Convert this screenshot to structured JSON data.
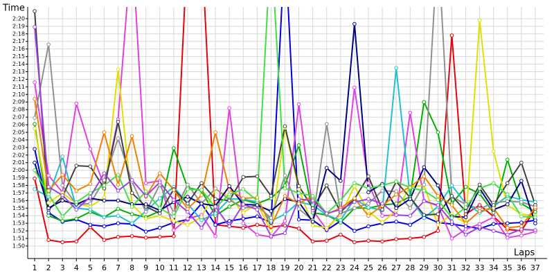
{
  "chart_data": {
    "type": "line",
    "y_label": "Time",
    "x_label": "Laps",
    "x": [
      1,
      2,
      3,
      4,
      5,
      6,
      7,
      8,
      9,
      10,
      11,
      12,
      13,
      14,
      15,
      16,
      17,
      18,
      19,
      20,
      21,
      22,
      23,
      24,
      25,
      26,
      27,
      28,
      29,
      30,
      31,
      32,
      33,
      34,
      35,
      36,
      37
    ],
    "xlim": [
      0.5,
      37.6
    ],
    "xticks": [
      1,
      2,
      3,
      4,
      5,
      6,
      7,
      8,
      9,
      10,
      11,
      12,
      13,
      14,
      15,
      16,
      17,
      18,
      19,
      20,
      21,
      22,
      23,
      24,
      25,
      26,
      27,
      28,
      29,
      30,
      31,
      32,
      33,
      34,
      35,
      36,
      37
    ],
    "ylim": [
      108.35,
      141.55
    ],
    "yticks": [
      {
        "value": 110,
        "label": "1:50"
      },
      {
        "value": 111,
        "label": "1:51"
      },
      {
        "value": 112,
        "label": "1:52"
      },
      {
        "value": 113,
        "label": "1:53"
      },
      {
        "value": 114,
        "label": "1:54"
      },
      {
        "value": 115,
        "label": "1:55"
      },
      {
        "value": 116,
        "label": "1:56"
      },
      {
        "value": 117,
        "label": "1:57"
      },
      {
        "value": 118,
        "label": "1:58"
      },
      {
        "value": 119,
        "label": "1:59"
      },
      {
        "value": 120,
        "label": "2:00"
      },
      {
        "value": 121,
        "label": "2:01"
      },
      {
        "value": 122,
        "label": "2:02"
      },
      {
        "value": 123,
        "label": "2:03"
      },
      {
        "value": 124,
        "label": "2:04"
      },
      {
        "value": 125,
        "label": "2:05"
      },
      {
        "value": 126,
        "label": "2:06"
      },
      {
        "value": 127,
        "label": "2:07"
      },
      {
        "value": 128,
        "label": "2:08"
      },
      {
        "value": 129,
        "label": "2:09"
      },
      {
        "value": 130,
        "label": "2:10"
      },
      {
        "value": 131,
        "label": "2:11"
      },
      {
        "value": 132,
        "label": "2:12"
      },
      {
        "value": 133,
        "label": "2:13"
      },
      {
        "value": 134,
        "label": "2:14"
      },
      {
        "value": 135,
        "label": "2:15"
      },
      {
        "value": 136,
        "label": "2:16"
      },
      {
        "value": 137,
        "label": "2:17"
      },
      {
        "value": 138,
        "label": "2:18"
      },
      {
        "value": 139,
        "label": "2:19"
      },
      {
        "value": 140,
        "label": "2:20"
      }
    ],
    "grid": true,
    "series": [
      {
        "color": "#e8000b",
        "values": [
          118.9,
          110.8,
          110.5,
          110.6,
          112.5,
          110.8,
          111.2,
          111.3,
          111.1,
          111.2,
          111.3,
          150,
          150,
          112.8,
          112.6,
          112.4,
          112.8,
          112.5,
          112.7,
          112.3,
          110.6,
          110.7,
          111.5,
          110.5,
          110.7,
          110.6,
          110.9,
          111.0,
          111.2,
          112.0,
          137.8,
          114.2,
          115.4,
          113.9,
          112.2,
          112.0,
          114.9
        ]
      },
      {
        "color": "#0000e0",
        "values": [
          122.8,
          114.4,
          113.2,
          113.5,
          112.8,
          112.6,
          113.0,
          112.9,
          111.9,
          112.4,
          113.1,
          113.5,
          115.6,
          112.8,
          113.3,
          113.6,
          113.9,
          113.1,
          150,
          113.5,
          113.4,
          112.1,
          113.3,
          112.0,
          112.6,
          113.0,
          113.2,
          112.8,
          113.9,
          113.1,
          112.9,
          112.6,
          112.3,
          112.9,
          113.0,
          113.1,
          113.4
        ]
      },
      {
        "color": "#00b000",
        "values": [
          126.1,
          114.0,
          113.3,
          113.6,
          114.5,
          113.8,
          114.9,
          114.2,
          113.8,
          114.6,
          122.9,
          117.7,
          117.3,
          114.0,
          115.2,
          116.1,
          115.6,
          116.3,
          118.0,
          123.3,
          114.4,
          114.1,
          113.1,
          115.0,
          115.0,
          115.4,
          115.6,
          116.5,
          129.0,
          125.0,
          115.6,
          117.8,
          116.9,
          114.4,
          121.4,
          115.6,
          114.5
        ]
      },
      {
        "color": "#e040e0",
        "values": [
          131.6,
          119.3,
          117.1,
          128.8,
          122.8,
          118.0,
          126.7,
          150,
          118.3,
          118.6,
          112.1,
          113.6,
          114.1,
          111.3,
          128.2,
          113.0,
          111.5,
          111.2,
          113.3,
          128.7,
          114.7,
          112.2,
          114.4,
          130.9,
          118.3,
          114.0,
          114.1,
          127.6,
          116.0,
          115.3,
          111.0,
          112.2,
          112.9,
          113.8,
          111.1,
          111.4,
          111.9
        ]
      },
      {
        "color": "#e0e000",
        "values": [
          125.5,
          115.7,
          117.0,
          115.6,
          115.2,
          116.4,
          133.3,
          115.5,
          113.6,
          114.0,
          113.3,
          112.8,
          113.8,
          117.5,
          116.5,
          114.4,
          115.6,
          112.0,
          125.6,
          117.5,
          112.7,
          112.4,
          114.1,
          117.9,
          114.6,
          113.1,
          114.7,
          117.8,
          118.0,
          112.8,
          114.2,
          113.0,
          139.8,
          122.5,
          115.4,
          114.2,
          114.0
        ]
      },
      {
        "color": "#20c0d0",
        "values": [
          117.5,
          116.5,
          121.8,
          115.0,
          114.8,
          113.8,
          114.0,
          113.0,
          114.6,
          116.3,
          117.8,
          115.6,
          113.4,
          114.3,
          116.2,
          116.2,
          115.8,
          113.3,
          114.2,
          115.8,
          115.4,
          114.1,
          113.4,
          116.2,
          115.1,
          114.7,
          133.5,
          116.4,
          113.7,
          115.2,
          118.0,
          115.6,
          114.4,
          115.2,
          116.6,
          116.1,
          115.8
        ]
      },
      {
        "color": "#909090",
        "values": [
          126.9,
          136.6,
          118.0,
          115.5,
          115.6,
          118.7,
          124.2,
          118.5,
          114.5,
          118.1,
          114.4,
          118.1,
          115.6,
          117.6,
          116.1,
          115.0,
          115.3,
          113.7,
          119.3,
          114.9,
          113.4,
          126.1,
          114.3,
          115.0,
          115.6,
          117.3,
          117.2,
          115.0,
          118.1,
          150,
          116.5,
          115.5,
          114.9,
          115.7,
          115.9,
          115.8,
          115.2
        ]
      },
      {
        "color": "#404040",
        "values": [
          141,
          114.8,
          116.5,
          120.6,
          120.5,
          117.6,
          126.4,
          117.0,
          115.2,
          114.3,
          117.5,
          115.6,
          118.3,
          116.2,
          116.0,
          119.1,
          119.2,
          116.6,
          125.8,
          117.9,
          115.0,
          118.0,
          114.5,
          116.2,
          119.2,
          114.8,
          118.5,
          116.4,
          114.1,
          114.2,
          116.6,
          114.6,
          118.1,
          115.4,
          118.3,
          121.0,
          115.4
        ]
      },
      {
        "color": "#000080",
        "values": [
          121.0,
          115.0,
          116.0,
          115.5,
          116.3,
          116.0,
          116.0,
          115.5,
          115.5,
          114.7,
          115.8,
          116.5,
          115.6,
          115.3,
          117.9,
          115.5,
          115.4,
          114.6,
          116.2,
          115.8,
          113.2,
          120.3,
          118.6,
          139.3,
          117.1,
          118.2,
          115.0,
          116.2,
          120.4,
          118.0,
          113.9,
          113.8,
          117.6,
          114.8,
          115.5,
          118.6,
          113.0
        ]
      },
      {
        "color": "#f08000",
        "values": [
          129.4,
          117.3,
          119.4,
          117.3,
          118.2,
          125.0,
          118.1,
          124.5,
          116.5,
          119.6,
          117.4,
          114.9,
          116.7,
          125.0,
          117.4,
          116.3,
          116.4,
          112.6,
          116.6,
          115.6,
          116.6,
          114.2,
          115.0,
          116.3,
          114.0,
          115.3,
          116.8,
          117.8,
          119.2,
          116.6,
          115.4,
          113.0,
          114.6,
          115.0,
          112.4,
          112.6,
          115.1
        ]
      },
      {
        "color": "#40e040",
        "values": [
          120.0,
          116.8,
          113.9,
          115.8,
          117.0,
          118.0,
          119.4,
          115.2,
          117.2,
          115.0,
          113.9,
          117.5,
          117.4,
          115.1,
          116.8,
          117.5,
          116.0,
          150,
          117.6,
          117.0,
          116.6,
          114.3,
          116.0,
          118.3,
          117.6,
          118.0,
          118.5,
          117.7,
          117.3,
          116.1,
          113.7,
          115.1,
          117.6,
          118.3,
          116.8,
          113.9,
          113.8
        ]
      },
      {
        "color": "#a040e0",
        "values": [
          138.9,
          117.8,
          116.7,
          114.8,
          116.5,
          119.6,
          117.3,
          118.7,
          116.6,
          118.4,
          116.1,
          114.5,
          112.4,
          115.2,
          112.6,
          115.5,
          114.8,
          111.3,
          111.7,
          116.2,
          116.0,
          114.3,
          114.8,
          115.8,
          116.2,
          115.6,
          114.1,
          114.0,
          115.9,
          115.4,
          113.2,
          111.5,
          112.5,
          112.0,
          111.5,
          112.2,
          112.1
        ]
      }
    ]
  }
}
